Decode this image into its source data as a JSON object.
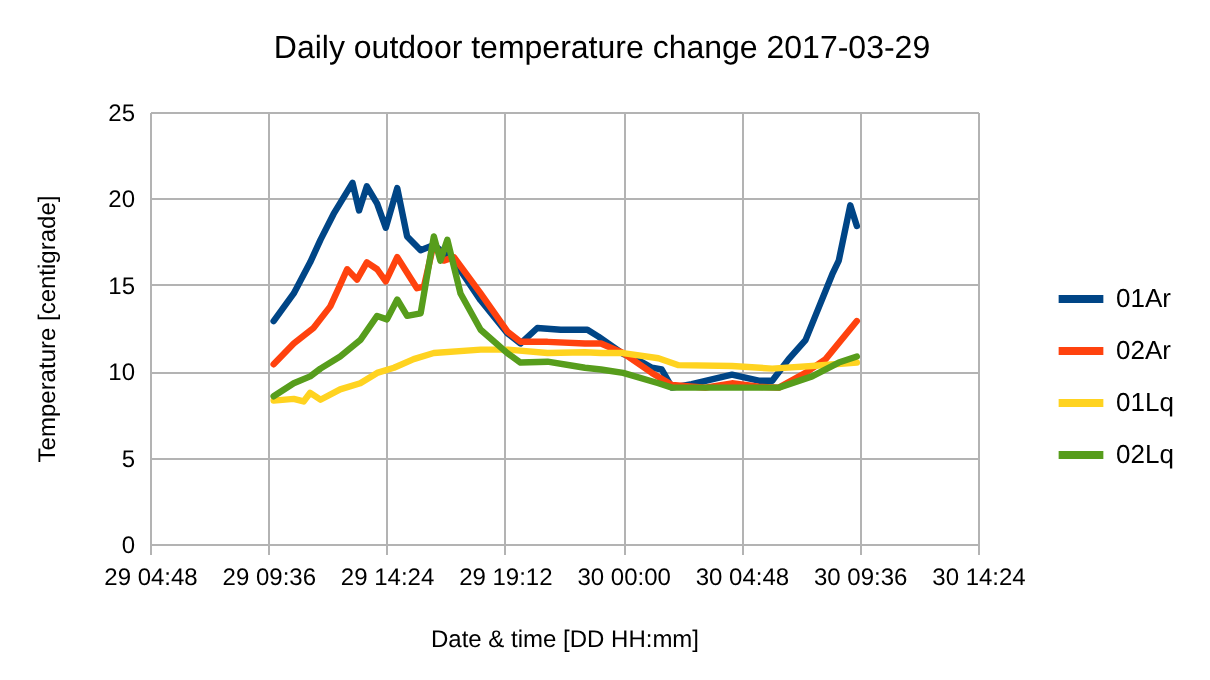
{
  "chart_data": {
    "type": "line",
    "title": "Daily outdoor temperature change 2017-03-29",
    "xlabel": "Date & time [DD HH:mm]",
    "ylabel": "Temperature [centigrade]",
    "xlim": [
      "2017-03-29T04:48",
      "2017-03-30T14:24"
    ],
    "xticks": [
      {
        "value": "2017-03-29T04:48",
        "label": "29 04:48"
      },
      {
        "value": "2017-03-29T09:36",
        "label": "29 09:36"
      },
      {
        "value": "2017-03-29T14:24",
        "label": "29 14:24"
      },
      {
        "value": "2017-03-29T19:12",
        "label": "29 19:12"
      },
      {
        "value": "2017-03-30T00:00",
        "label": "30 00:00"
      },
      {
        "value": "2017-03-30T04:48",
        "label": "30 04:48"
      },
      {
        "value": "2017-03-30T09:36",
        "label": "30 09:36"
      },
      {
        "value": "2017-03-30T14:24",
        "label": "30 14:24"
      }
    ],
    "ylim": [
      0,
      25
    ],
    "yticks": [
      0,
      5,
      10,
      15,
      20,
      25
    ],
    "grid": true,
    "legend": "right",
    "marker": "none",
    "line_style": "solid",
    "series": [
      {
        "name": "01Ar",
        "color": "#004586",
        "x": [
          "2017-03-29T09:49",
          "2017-03-29T10:38",
          "2017-03-29T11:18",
          "2017-03-29T11:43",
          "2017-03-29T12:15",
          "2017-03-29T13:01",
          "2017-03-29T13:17",
          "2017-03-29T13:36",
          "2017-03-29T14:01",
          "2017-03-29T14:22",
          "2017-03-29T14:50",
          "2017-03-29T15:14",
          "2017-03-29T15:47",
          "2017-03-29T16:19",
          "2017-03-29T17:08",
          "2017-03-29T18:13",
          "2017-03-29T19:18",
          "2017-03-29T19:50",
          "2017-03-29T20:31",
          "2017-03-29T21:28",
          "2017-03-29T22:33",
          "2017-03-29T23:00",
          "2017-03-30T00:00",
          "2017-03-30T00:29",
          "2017-03-30T01:10",
          "2017-03-30T01:34",
          "2017-03-30T01:59",
          "2017-03-30T02:47",
          "2017-03-30T04:25",
          "2017-03-30T05:30",
          "2017-03-30T06:03",
          "2017-03-30T06:43",
          "2017-03-30T07:24",
          "2017-03-30T07:48",
          "2017-03-30T08:29",
          "2017-03-30T08:45",
          "2017-03-30T09:13",
          "2017-03-30T09:29"
        ],
        "values": [
          12.9,
          14.5,
          16.3,
          17.6,
          19.1,
          20.9,
          19.3,
          20.7,
          19.7,
          18.3,
          20.6,
          17.8,
          17.0,
          17.3,
          16.4,
          14.1,
          12.2,
          11.6,
          12.5,
          12.4,
          12.4,
          12.0,
          11.0,
          10.75,
          10.2,
          10.1,
          9.05,
          9.25,
          9.8,
          9.45,
          9.45,
          10.7,
          11.8,
          13.2,
          15.6,
          16.4,
          19.6,
          18.4
        ]
      },
      {
        "name": "02Ar",
        "color": "#ff420e",
        "x": [
          "2017-03-29T09:49",
          "2017-03-29T10:38",
          "2017-03-29T11:26",
          "2017-03-29T12:07",
          "2017-03-29T12:31",
          "2017-03-29T12:48",
          "2017-03-29T13:12",
          "2017-03-29T13:36",
          "2017-03-29T14:01",
          "2017-03-29T14:22",
          "2017-03-29T14:50",
          "2017-03-29T15:14",
          "2017-03-29T15:38",
          "2017-03-29T15:55",
          "2017-03-29T16:19",
          "2017-03-29T16:43",
          "2017-03-29T17:08",
          "2017-03-29T18:13",
          "2017-03-29T19:18",
          "2017-03-29T19:50",
          "2017-03-29T20:56",
          "2017-03-29T22:27",
          "2017-03-29T23:06",
          "2017-03-30T00:00",
          "2017-03-30T01:10",
          "2017-03-30T01:59",
          "2017-03-30T03:20",
          "2017-03-30T04:25",
          "2017-03-30T05:30",
          "2017-03-30T06:19",
          "2017-03-30T07:24",
          "2017-03-30T08:13",
          "2017-03-30T09:29"
        ],
        "values": [
          10.4,
          11.6,
          12.5,
          13.75,
          15.0,
          15.9,
          15.3,
          16.3,
          15.9,
          15.2,
          16.6,
          15.7,
          14.8,
          14.9,
          17.4,
          16.4,
          16.6,
          14.5,
          12.3,
          11.7,
          11.7,
          11.6,
          11.6,
          11.05,
          9.9,
          9.2,
          9.05,
          9.3,
          9.1,
          9.05,
          9.9,
          10.7,
          12.9
        ]
      },
      {
        "name": "01Lq",
        "color": "#ffd320",
        "x": [
          "2017-03-29T09:49",
          "2017-03-29T10:38",
          "2017-03-29T11:02",
          "2017-03-29T11:18",
          "2017-03-29T11:43",
          "2017-03-29T12:31",
          "2017-03-29T13:20",
          "2017-03-29T14:01",
          "2017-03-29T14:42",
          "2017-03-29T15:30",
          "2017-03-29T16:19",
          "2017-03-29T18:13",
          "2017-03-29T19:18",
          "2017-03-29T20:56",
          "2017-03-29T22:27",
          "2017-03-29T23:06",
          "2017-03-30T00:00",
          "2017-03-30T01:26",
          "2017-03-30T02:15",
          "2017-03-30T04:25",
          "2017-03-30T06:03",
          "2017-03-30T07:40",
          "2017-03-30T09:29"
        ],
        "values": [
          8.3,
          8.4,
          8.25,
          8.75,
          8.35,
          8.95,
          9.3,
          9.9,
          10.2,
          10.7,
          11.05,
          11.25,
          11.25,
          11.05,
          11.1,
          11.05,
          11.05,
          10.75,
          10.35,
          10.3,
          10.15,
          10.3,
          10.5
        ]
      },
      {
        "name": "02Lq",
        "color": "#579d1c",
        "x": [
          "2017-03-29T09:49",
          "2017-03-29T10:38",
          "2017-03-29T11:18",
          "2017-03-29T11:43",
          "2017-03-29T12:31",
          "2017-03-29T13:20",
          "2017-03-29T14:01",
          "2017-03-29T14:25",
          "2017-03-29T14:50",
          "2017-03-29T15:14",
          "2017-03-29T15:47",
          "2017-03-29T16:19",
          "2017-03-29T16:35",
          "2017-03-29T16:52",
          "2017-03-29T17:24",
          "2017-03-29T18:13",
          "2017-03-29T19:18",
          "2017-03-29T19:50",
          "2017-03-29T20:56",
          "2017-03-29T22:01",
          "2017-03-29T22:27",
          "2017-03-29T23:06",
          "2017-03-30T00:00",
          "2017-03-30T01:26",
          "2017-03-30T01:59",
          "2017-03-30T04:25",
          "2017-03-30T06:19",
          "2017-03-30T07:40",
          "2017-03-30T08:45",
          "2017-03-30T09:29"
        ],
        "values": [
          8.55,
          9.3,
          9.7,
          10.15,
          10.85,
          11.8,
          13.2,
          13.0,
          14.15,
          13.2,
          13.35,
          17.8,
          16.4,
          17.6,
          14.5,
          12.4,
          11.05,
          10.5,
          10.55,
          10.3,
          10.2,
          10.1,
          9.9,
          9.3,
          9.05,
          9.05,
          9.05,
          9.7,
          10.5,
          10.85
        ]
      }
    ]
  }
}
